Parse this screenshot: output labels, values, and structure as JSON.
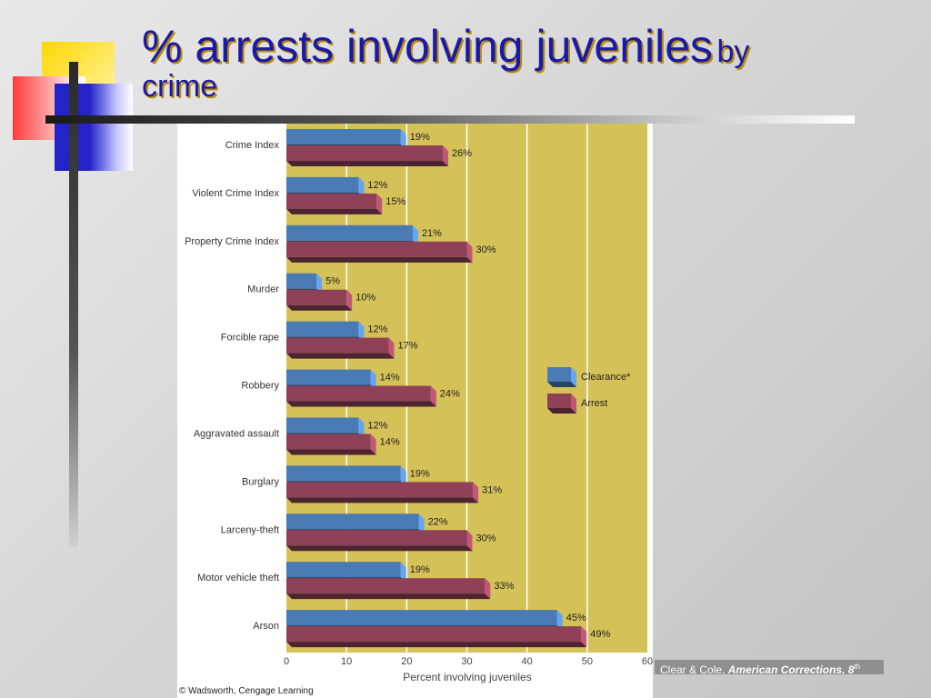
{
  "slide": {
    "title_main": "% arrests involving juveniles",
    "title_by": "by",
    "title_line2": "crime",
    "citation_authors": "Clear & Cole, ",
    "citation_book": "American Corrections, 8",
    "citation_sup": "th",
    "copyright": "© Wadsworth, Cengage Learning"
  },
  "colors": {
    "clearance": "#4a7ab4",
    "arrest": "#8e4157",
    "plot_bg": "#d4c157",
    "title": "#1a1aa8"
  },
  "chart_data": {
    "type": "bar",
    "orientation": "horizontal",
    "categories": [
      "Crime Index",
      "Violent Crime Index",
      "Property Crime Index",
      "Murder",
      "Forcible rape",
      "Robbery",
      "Aggravated assault",
      "Burglary",
      "Larceny-theft",
      "Motor vehicle theft",
      "Arson"
    ],
    "series": [
      {
        "name": "Clearance*",
        "values": [
          19,
          12,
          21,
          5,
          12,
          14,
          12,
          19,
          22,
          19,
          45
        ]
      },
      {
        "name": "Arrest",
        "values": [
          26,
          15,
          30,
          10,
          17,
          24,
          14,
          31,
          30,
          33,
          49
        ]
      }
    ],
    "value_suffix": "%",
    "xlabel": "Percent involving juveniles",
    "xlim": [
      0,
      60
    ],
    "xticks": [
      0,
      10,
      20,
      30,
      40,
      50,
      60
    ],
    "grid": true,
    "legend_position": "right"
  }
}
